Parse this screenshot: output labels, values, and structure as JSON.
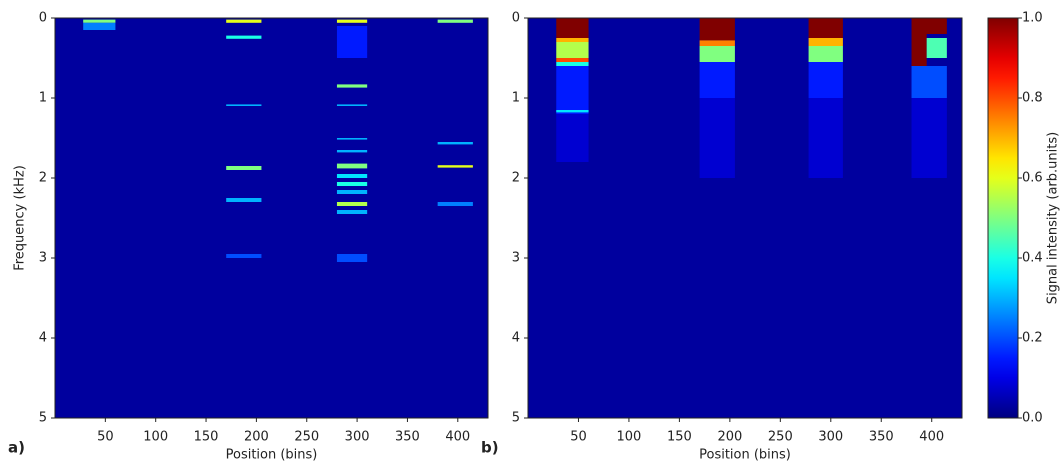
{
  "chart_data": [
    {
      "type": "heatmap",
      "panel_label": "a)",
      "xlabel": "Position (bins)",
      "ylabel": "Frequency (kHz)",
      "xlim": [
        0,
        430
      ],
      "xticks": [
        50,
        100,
        150,
        200,
        250,
        300,
        350,
        400
      ],
      "ylim": [
        5,
        0
      ],
      "yticks": [
        0,
        1,
        2,
        3,
        4,
        5
      ],
      "background": 0.03,
      "cells": [
        {
          "x": [
            28,
            60
          ],
          "y": [
            0.02,
            0.06
          ],
          "value": 0.5
        },
        {
          "x": [
            28,
            60
          ],
          "y": [
            0.06,
            0.15
          ],
          "value": 0.25
        },
        {
          "x": [
            170,
            205
          ],
          "y": [
            0.02,
            0.06
          ],
          "value": 0.6
        },
        {
          "x": [
            170,
            205
          ],
          "y": [
            0.22,
            0.26
          ],
          "value": 0.4
        },
        {
          "x": [
            170,
            205
          ],
          "y": [
            1.08,
            1.1
          ],
          "value": 0.3
        },
        {
          "x": [
            170,
            205
          ],
          "y": [
            1.85,
            1.9
          ],
          "value": 0.5
        },
        {
          "x": [
            170,
            205
          ],
          "y": [
            2.25,
            2.3
          ],
          "value": 0.3
        },
        {
          "x": [
            170,
            205
          ],
          "y": [
            2.95,
            3.0
          ],
          "value": 0.2
        },
        {
          "x": [
            280,
            310
          ],
          "y": [
            0.02,
            0.06
          ],
          "value": 0.6
        },
        {
          "x": [
            280,
            310
          ],
          "y": [
            0.1,
            0.5
          ],
          "value": 0.15
        },
        {
          "x": [
            280,
            310
          ],
          "y": [
            0.83,
            0.87
          ],
          "value": 0.5
        },
        {
          "x": [
            280,
            310
          ],
          "y": [
            1.08,
            1.1
          ],
          "value": 0.3
        },
        {
          "x": [
            280,
            310
          ],
          "y": [
            1.5,
            1.52
          ],
          "value": 0.3
        },
        {
          "x": [
            280,
            310
          ],
          "y": [
            1.65,
            1.68
          ],
          "value": 0.3
        },
        {
          "x": [
            280,
            310
          ],
          "y": [
            1.82,
            1.88
          ],
          "value": 0.5
        },
        {
          "x": [
            280,
            310
          ],
          "y": [
            1.95,
            2.0
          ],
          "value": 0.35
        },
        {
          "x": [
            280,
            310
          ],
          "y": [
            2.05,
            2.1
          ],
          "value": 0.4
        },
        {
          "x": [
            280,
            310
          ],
          "y": [
            2.15,
            2.2
          ],
          "value": 0.3
        },
        {
          "x": [
            280,
            310
          ],
          "y": [
            2.3,
            2.35
          ],
          "value": 0.55
        },
        {
          "x": [
            280,
            310
          ],
          "y": [
            2.4,
            2.45
          ],
          "value": 0.3
        },
        {
          "x": [
            280,
            310
          ],
          "y": [
            2.95,
            3.05
          ],
          "value": 0.2
        },
        {
          "x": [
            380,
            415
          ],
          "y": [
            0.02,
            0.06
          ],
          "value": 0.5
        },
        {
          "x": [
            380,
            415
          ],
          "y": [
            1.55,
            1.58
          ],
          "value": 0.3
        },
        {
          "x": [
            380,
            415
          ],
          "y": [
            1.84,
            1.87
          ],
          "value": 0.6
        },
        {
          "x": [
            380,
            415
          ],
          "y": [
            2.3,
            2.35
          ],
          "value": 0.25
        }
      ]
    },
    {
      "type": "heatmap",
      "panel_label": "b)",
      "xlabel": "Position (bins)",
      "xlim": [
        0,
        430
      ],
      "xticks": [
        50,
        100,
        150,
        200,
        250,
        300,
        350,
        400
      ],
      "ylim": [
        5,
        0
      ],
      "yticks": [
        0,
        1,
        2,
        3,
        4,
        5
      ],
      "background": 0.03,
      "cells": [
        {
          "x": [
            28,
            60
          ],
          "y": [
            1.2,
            1.8
          ],
          "value": 0.08
        },
        {
          "x": [
            28,
            60
          ],
          "y": [
            0.6,
            1.2
          ],
          "value": 0.15
        },
        {
          "x": [
            28,
            60
          ],
          "y": [
            1.15,
            1.18
          ],
          "value": 0.35
        },
        {
          "x": [
            28,
            60
          ],
          "y": [
            0.0,
            0.25
          ],
          "value": 1.0
        },
        {
          "x": [
            28,
            60
          ],
          "y": [
            0.25,
            0.3
          ],
          "value": 0.7
        },
        {
          "x": [
            28,
            60
          ],
          "y": [
            0.3,
            0.5
          ],
          "value": 0.55
        },
        {
          "x": [
            28,
            60
          ],
          "y": [
            0.5,
            0.55
          ],
          "value": 0.8
        },
        {
          "x": [
            28,
            60
          ],
          "y": [
            0.55,
            0.6
          ],
          "value": 0.4
        },
        {
          "x": [
            170,
            205
          ],
          "y": [
            1.0,
            2.0
          ],
          "value": 0.08
        },
        {
          "x": [
            170,
            205
          ],
          "y": [
            0.55,
            1.0
          ],
          "value": 0.15
        },
        {
          "x": [
            170,
            205
          ],
          "y": [
            0.0,
            0.28
          ],
          "value": 1.0
        },
        {
          "x": [
            170,
            205
          ],
          "y": [
            0.28,
            0.35
          ],
          "value": 0.75
        },
        {
          "x": [
            170,
            205
          ],
          "y": [
            0.35,
            0.55
          ],
          "value": 0.5
        },
        {
          "x": [
            278,
            312
          ],
          "y": [
            1.0,
            2.0
          ],
          "value": 0.08
        },
        {
          "x": [
            278,
            312
          ],
          "y": [
            0.55,
            1.0
          ],
          "value": 0.15
        },
        {
          "x": [
            278,
            312
          ],
          "y": [
            0.0,
            0.25
          ],
          "value": 1.0
        },
        {
          "x": [
            278,
            312
          ],
          "y": [
            0.25,
            0.35
          ],
          "value": 0.7
        },
        {
          "x": [
            278,
            312
          ],
          "y": [
            0.35,
            0.55
          ],
          "value": 0.5
        },
        {
          "x": [
            380,
            415
          ],
          "y": [
            1.0,
            2.0
          ],
          "value": 0.08
        },
        {
          "x": [
            380,
            415
          ],
          "y": [
            0.6,
            1.0
          ],
          "value": 0.2
        },
        {
          "x": [
            380,
            415
          ],
          "y": [
            0.0,
            0.2
          ],
          "value": 1.0
        },
        {
          "x": [
            380,
            395
          ],
          "y": [
            0.2,
            0.6
          ],
          "value": 1.0
        },
        {
          "x": [
            395,
            415
          ],
          "y": [
            0.25,
            0.5
          ],
          "value": 0.45
        }
      ]
    },
    {
      "type": "colorbar",
      "label": "Signal intensity (arb.units)",
      "colormap": "jet",
      "clim": [
        0,
        1
      ],
      "ticks": [
        {
          "value": 0,
          "label": "0.0"
        },
        {
          "value": 0.2,
          "label": "0.2"
        },
        {
          "value": 0.4,
          "label": "0.4"
        },
        {
          "value": 0.6,
          "label": "0.6"
        },
        {
          "value": 0.8,
          "label": "0.8"
        },
        {
          "value": 1,
          "label": "1.0"
        }
      ]
    }
  ]
}
